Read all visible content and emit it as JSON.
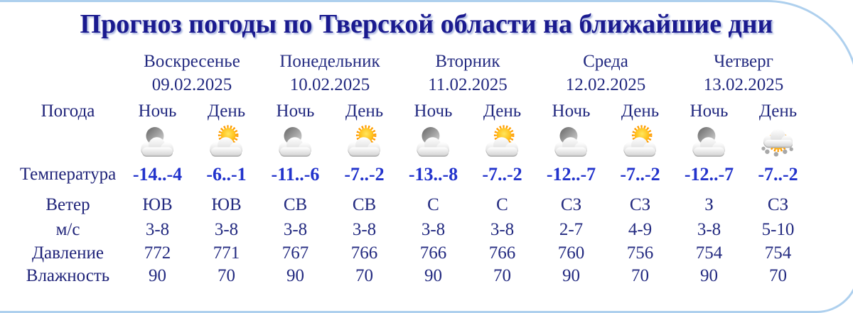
{
  "page": {
    "title": "Прогноз погоды по Тверской области на ближайшие дни"
  },
  "row_labels": {
    "weather": "Погода",
    "temperature": "Температура",
    "wind": "Ветер",
    "wind_unit": "м/с",
    "pressure": "Давление",
    "humidity": "Влажность"
  },
  "days": [
    {
      "name": "Воскресенье",
      "date": "09.02.2025"
    },
    {
      "name": "Понедельник",
      "date": "10.02.2025"
    },
    {
      "name": "Вторник",
      "date": "11.02.2025"
    },
    {
      "name": "Среда",
      "date": "12.02.2025"
    },
    {
      "name": "Четверг",
      "date": "13.02.2025"
    }
  ],
  "columns": [
    {
      "period": "Ночь",
      "icon": "moon-behind-cloud",
      "temperature": "-14..-4",
      "wind_direction": "ЮВ",
      "wind_speed": "3-8",
      "pressure": "772",
      "humidity": "90"
    },
    {
      "period": "День",
      "icon": "sun-behind-cloud",
      "temperature": "-6..-1",
      "wind_direction": "ЮВ",
      "wind_speed": "3-8",
      "pressure": "771",
      "humidity": "70"
    },
    {
      "period": "Ночь",
      "icon": "moon-behind-cloud",
      "temperature": "-11..-6",
      "wind_direction": "СВ",
      "wind_speed": "3-8",
      "pressure": "767",
      "humidity": "90"
    },
    {
      "period": "День",
      "icon": "sun-behind-cloud",
      "temperature": "-7..-2",
      "wind_direction": "СВ",
      "wind_speed": "3-8",
      "pressure": "766",
      "humidity": "70"
    },
    {
      "period": "Ночь",
      "icon": "moon-behind-cloud",
      "temperature": "-13..-8",
      "wind_direction": "С",
      "wind_speed": "3-8",
      "pressure": "766",
      "humidity": "90"
    },
    {
      "period": "День",
      "icon": "sun-behind-cloud",
      "temperature": "-7..-2",
      "wind_direction": "С",
      "wind_speed": "3-8",
      "pressure": "766",
      "humidity": "70"
    },
    {
      "period": "Ночь",
      "icon": "moon-behind-cloud",
      "temperature": "-12..-7",
      "wind_direction": "СЗ",
      "wind_speed": "2-7",
      "pressure": "760",
      "humidity": "90"
    },
    {
      "period": "День",
      "icon": "sun-behind-cloud",
      "temperature": "-7..-2",
      "wind_direction": "СЗ",
      "wind_speed": "4-9",
      "pressure": "756",
      "humidity": "70"
    },
    {
      "period": "Ночь",
      "icon": "moon-behind-cloud",
      "temperature": "-12..-7",
      "wind_direction": "З",
      "wind_speed": "3-8",
      "pressure": "754",
      "humidity": "90"
    },
    {
      "period": "День",
      "icon": "sun-behind-cloud-snow",
      "temperature": "-7..-2",
      "wind_direction": "СЗ",
      "wind_speed": "5-10",
      "pressure": "754",
      "humidity": "70"
    }
  ],
  "colors": {
    "title": "#1a1a8f",
    "text": "#232a80",
    "temperature": "#2233cc",
    "border": "#aed0ee",
    "sun": "#ff9d00",
    "background": "#ffffff"
  }
}
